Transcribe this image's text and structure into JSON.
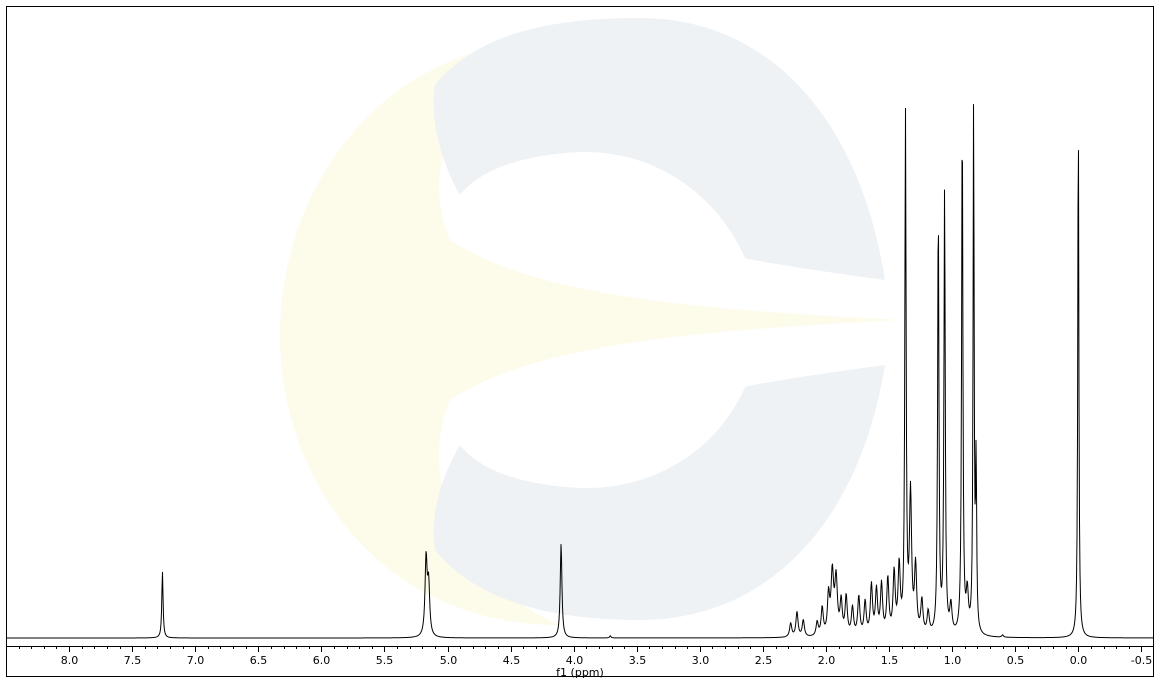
{
  "chart_data": {
    "type": "line",
    "xlabel": "f1 (ppm)",
    "ylabel": "",
    "title": "",
    "x_reversed": true,
    "xlim": [
      8.5,
      -0.6
    ],
    "ylim": [
      0,
      1.05
    ],
    "grid": false,
    "legend": "none",
    "x_ticks": [
      {
        "value": 8.0,
        "label": "8.0"
      },
      {
        "value": 7.5,
        "label": "7.5"
      },
      {
        "value": 7.0,
        "label": "7.0"
      },
      {
        "value": 6.5,
        "label": "6.5"
      },
      {
        "value": 6.0,
        "label": "6.0"
      },
      {
        "value": 5.5,
        "label": "5.5"
      },
      {
        "value": 5.0,
        "label": "5.0"
      },
      {
        "value": 4.5,
        "label": "4.5"
      },
      {
        "value": 4.0,
        "label": "4.0"
      },
      {
        "value": 3.5,
        "label": "3.5"
      },
      {
        "value": 3.0,
        "label": "3.0"
      },
      {
        "value": 2.5,
        "label": "2.5"
      },
      {
        "value": 2.0,
        "label": "2.0"
      },
      {
        "value": 1.5,
        "label": "1.5"
      },
      {
        "value": 1.0,
        "label": "1.0"
      },
      {
        "value": 0.5,
        "label": "0.5"
      },
      {
        "value": 0.0,
        "label": "0.0"
      },
      {
        "value": -0.5,
        "label": "-0.5"
      }
    ],
    "peaks": [
      {
        "ppm": 7.26,
        "height": 0.12,
        "width": 0.006
      },
      {
        "ppm": 5.17,
        "height": 0.14,
        "width": 0.01
      },
      {
        "ppm": 5.15,
        "height": 0.09,
        "width": 0.01
      },
      {
        "ppm": 4.1,
        "height": 0.17,
        "width": 0.008
      },
      {
        "ppm": 3.71,
        "height": 0.004,
        "width": 0.006
      },
      {
        "ppm": 2.28,
        "height": 0.025,
        "width": 0.01
      },
      {
        "ppm": 2.23,
        "height": 0.045,
        "width": 0.01
      },
      {
        "ppm": 2.18,
        "height": 0.03,
        "width": 0.01
      },
      {
        "ppm": 2.07,
        "height": 0.025,
        "width": 0.01
      },
      {
        "ppm": 2.03,
        "height": 0.05,
        "width": 0.01
      },
      {
        "ppm": 1.98,
        "height": 0.07,
        "width": 0.01
      },
      {
        "ppm": 1.95,
        "height": 0.11,
        "width": 0.012
      },
      {
        "ppm": 1.92,
        "height": 0.1,
        "width": 0.012
      },
      {
        "ppm": 1.88,
        "height": 0.06,
        "width": 0.01
      },
      {
        "ppm": 1.84,
        "height": 0.07,
        "width": 0.01
      },
      {
        "ppm": 1.79,
        "height": 0.05,
        "width": 0.01
      },
      {
        "ppm": 1.74,
        "height": 0.07,
        "width": 0.01
      },
      {
        "ppm": 1.69,
        "height": 0.06,
        "width": 0.01
      },
      {
        "ppm": 1.64,
        "height": 0.09,
        "width": 0.01
      },
      {
        "ppm": 1.6,
        "height": 0.08,
        "width": 0.01
      },
      {
        "ppm": 1.56,
        "height": 0.09,
        "width": 0.01
      },
      {
        "ppm": 1.51,
        "height": 0.1,
        "width": 0.01
      },
      {
        "ppm": 1.46,
        "height": 0.11,
        "width": 0.01
      },
      {
        "ppm": 1.42,
        "height": 0.12,
        "width": 0.01
      },
      {
        "ppm": 1.37,
        "height": 0.93,
        "width": 0.006
      },
      {
        "ppm": 1.33,
        "height": 0.25,
        "width": 0.01
      },
      {
        "ppm": 1.29,
        "height": 0.12,
        "width": 0.01
      },
      {
        "ppm": 1.24,
        "height": 0.06,
        "width": 0.01
      },
      {
        "ppm": 1.19,
        "height": 0.04,
        "width": 0.01
      },
      {
        "ppm": 1.11,
        "height": 0.77,
        "width": 0.006
      },
      {
        "ppm": 1.06,
        "height": 0.8,
        "width": 0.006
      },
      {
        "ppm": 1.01,
        "height": 0.05,
        "width": 0.01
      },
      {
        "ppm": 0.92,
        "height": 0.94,
        "width": 0.006
      },
      {
        "ppm": 0.88,
        "height": 0.07,
        "width": 0.01
      },
      {
        "ppm": 0.83,
        "height": 0.96,
        "width": 0.005
      },
      {
        "ppm": 0.81,
        "height": 0.3,
        "width": 0.005
      },
      {
        "ppm": 0.6,
        "height": 0.004,
        "width": 0.008
      },
      {
        "ppm": 0.0,
        "height": 0.96,
        "width": 0.005
      }
    ]
  },
  "watermark": {
    "colors": [
      "#eef2f5",
      "#fdfbea"
    ]
  }
}
